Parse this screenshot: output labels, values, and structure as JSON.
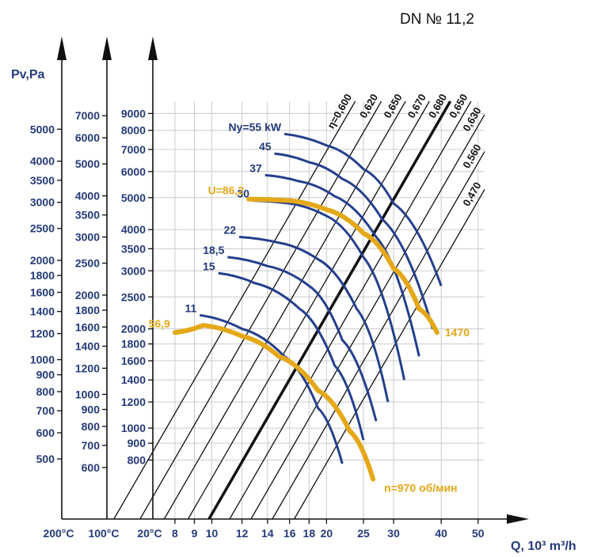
{
  "chart_data": {
    "type": "line",
    "title": "DN № 11,2",
    "ylabel": "Pv,Pa",
    "xlabel": "Q, 10³ m³/h",
    "x_axis": {
      "ticks": [
        8,
        9,
        10,
        12,
        14,
        16,
        18,
        20,
        25,
        30,
        40,
        50
      ],
      "temperature_labels": [
        "200°C",
        "100°C",
        "20°C"
      ]
    },
    "y_axes": [
      {
        "name": "200°C",
        "ticks": [
          500,
          600,
          700,
          800,
          900,
          1000,
          1200,
          1400,
          1600,
          1800,
          2000,
          2500,
          3000,
          3500,
          4000,
          5000
        ]
      },
      {
        "name": "100°C",
        "ticks": [
          600,
          700,
          800,
          900,
          1000,
          1200,
          1400,
          1600,
          1800,
          2000,
          2500,
          3000,
          3500,
          4000,
          5000,
          6000,
          7000
        ]
      },
      {
        "name": "20°C",
        "ticks": [
          800,
          900,
          1000,
          1200,
          1400,
          1600,
          1800,
          2000,
          2500,
          3000,
          3500,
          4000,
          5000,
          6000,
          7000,
          8000,
          9000
        ]
      }
    ],
    "ylim": [
      530,
      9800
    ],
    "xlim": [
      7,
      52
    ],
    "scale": "log-log",
    "grid": true,
    "power_curves": [
      {
        "label": "Ny=55 kW",
        "points": [
          [
            15.5,
            7800
          ],
          [
            20,
            7200
          ],
          [
            25,
            6100
          ],
          [
            30,
            4800
          ],
          [
            40,
            2700
          ]
        ]
      },
      {
        "label": "45",
        "points": [
          [
            14.6,
            6800
          ],
          [
            18,
            6400
          ],
          [
            22,
            5700
          ],
          [
            28,
            4300
          ],
          [
            38,
            2000
          ]
        ]
      },
      {
        "label": "37",
        "points": [
          [
            13.8,
            5850
          ],
          [
            17,
            5600
          ],
          [
            21,
            5050
          ],
          [
            27,
            3800
          ],
          [
            35,
            1650
          ]
        ]
      },
      {
        "label": "30",
        "points": [
          [
            12.8,
            4900
          ],
          [
            16,
            4800
          ],
          [
            20,
            4400
          ],
          [
            25,
            3300
          ],
          [
            32,
            1400
          ]
        ]
      },
      {
        "label": "22",
        "points": [
          [
            11.8,
            3800
          ],
          [
            15,
            3650
          ],
          [
            19,
            3250
          ],
          [
            24,
            2300
          ],
          [
            29,
            1200
          ]
        ]
      },
      {
        "label": "18,5",
        "points": [
          [
            11.0,
            3300
          ],
          [
            14,
            3100
          ],
          [
            18,
            2700
          ],
          [
            22,
            1850
          ],
          [
            27,
            1050
          ]
        ]
      },
      {
        "label": "15",
        "points": [
          [
            10.4,
            2950
          ],
          [
            13,
            2750
          ],
          [
            17,
            2300
          ],
          [
            21,
            1550
          ],
          [
            25,
            920
          ]
        ]
      },
      {
        "label": "11",
        "points": [
          [
            9.3,
            2200
          ],
          [
            12,
            2000
          ],
          [
            15.5,
            1650
          ],
          [
            19,
            1150
          ],
          [
            22,
            780
          ]
        ]
      }
    ],
    "operating_curves": [
      {
        "label": "U=86,2",
        "points": [
          [
            12.5,
            4950
          ],
          [
            16,
            4900
          ],
          [
            20,
            4600
          ],
          [
            25,
            3900
          ],
          [
            30,
            3050
          ],
          [
            35,
            2300
          ],
          [
            39,
            1950
          ]
        ]
      },
      {
        "label": "56,9",
        "points": [
          [
            8.0,
            1950
          ],
          [
            9.5,
            2050
          ],
          [
            12,
            1900
          ],
          [
            15,
            1650
          ],
          [
            19,
            1300
          ],
          [
            23,
            980
          ],
          [
            26.5,
            700
          ]
        ]
      }
    ],
    "speed_labels": [
      "1470",
      "n=970 об/мин"
    ],
    "efficiency_lines": [
      {
        "label": "η=0,600",
        "q_at_1000": 7.6
      },
      {
        "label": "0,620",
        "q_at_1000": 8.9
      },
      {
        "label": "0,650",
        "q_at_1000": 10.3
      },
      {
        "label": "0,670",
        "q_at_1000": 11.9
      },
      {
        "label": "0,680",
        "q_at_1000": 13.5
      },
      {
        "label": "0,650",
        "q_at_1000": 15.3
      },
      {
        "label": "0,630",
        "q_at_1000": 17.4
      },
      {
        "label": "0,560",
        "q_at_1000": 19.8
      },
      {
        "label": "0,470",
        "q_at_1000": 22.6
      }
    ],
    "colors": {
      "axis": "#111111",
      "text": "#243a7a",
      "power": "#243f8c",
      "operating": "#e5a818",
      "grid": "#cccccc",
      "efficiency": "#111111"
    }
  }
}
